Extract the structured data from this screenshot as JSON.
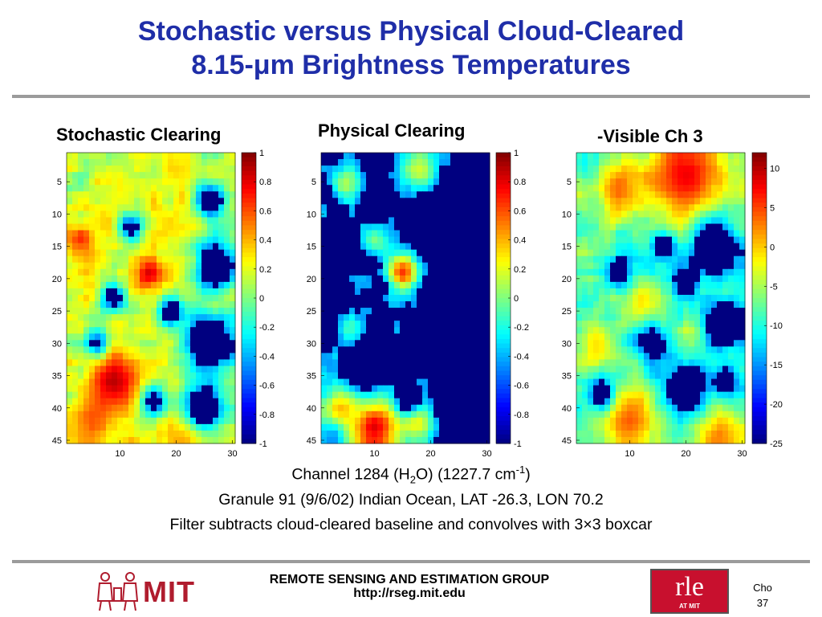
{
  "slide": {
    "title_line1": "Stochastic versus Physical Cloud-Cleared",
    "title_line2": "8.15-μm Brightness Temperatures"
  },
  "captions": {
    "line1_part1": "Channel 1284 (H",
    "line1_sub": "2",
    "line1_part2": "O) (1227.7 cm",
    "line1_sup": "-1",
    "line1_part3": ")",
    "line2": "Granule 91 (9/6/02) Indian Ocean, LAT -26.3, LON 70.2",
    "line3": "Filter subtracts cloud-cleared baseline and convolves with 3×3 boxcar"
  },
  "footer": {
    "group_name": "REMOTE SENSING AND ESTIMATION GROUP",
    "url": "http://rseg.mit.edu",
    "mit_logo_text": "MIT",
    "rle_logo_text": "rle",
    "rle_logo_sub": "AT MIT",
    "author": "Cho",
    "page": "37"
  },
  "colors": {
    "title": "#1f2ea8",
    "rule": "#9b9b9b"
  },
  "chart_data": [
    {
      "type": "heatmap",
      "title": "Stochastic Clearing",
      "xticks": [
        10,
        20,
        30
      ],
      "yticks": [
        5,
        10,
        15,
        20,
        25,
        30,
        35,
        40,
        45
      ],
      "xlim": [
        1,
        30
      ],
      "ylim": [
        1,
        45
      ],
      "colorbar": {
        "min": -1,
        "max": 1,
        "ticks": [
          1,
          0.8,
          0.6,
          0.4,
          0.2,
          0,
          -0.2,
          -0.4,
          -0.6,
          -0.8,
          -1
        ],
        "labels": [
          "1",
          "0.8",
          "0.6",
          "0.4",
          "0.2",
          "0",
          "-0.2",
          "-0.4",
          "-0.6",
          "-0.8",
          "-1"
        ]
      },
      "colormap": "jet",
      "seed": 11,
      "features": [
        {
          "x": 3,
          "y": 14,
          "r": 2.0,
          "v": 0.85
        },
        {
          "x": 15,
          "y": 19,
          "r": 2.4,
          "v": 0.95
        },
        {
          "x": 9,
          "y": 36,
          "r": 4.5,
          "v": 0.95
        },
        {
          "x": 5,
          "y": 42,
          "r": 4,
          "v": 0.6
        },
        {
          "x": 22,
          "y": 44,
          "r": 4,
          "v": 0.55
        },
        {
          "x": 18,
          "y": 12,
          "r": 3,
          "v": 0.35
        },
        {
          "x": 10,
          "y": 7,
          "r": 3,
          "v": 0.25
        },
        {
          "x": 20,
          "y": 3,
          "r": 3,
          "v": 0.35
        },
        {
          "x": 26,
          "y": 8,
          "r": 2.5,
          "v": -1
        },
        {
          "x": 27,
          "y": 18,
          "r": 3.5,
          "v": -1
        },
        {
          "x": 26,
          "y": 30,
          "r": 4.5,
          "v": -1
        },
        {
          "x": 25,
          "y": 40,
          "r": 3.5,
          "v": -1
        },
        {
          "x": 16,
          "y": 39,
          "r": 2.0,
          "v": -1
        },
        {
          "x": 9,
          "y": 23,
          "r": 2.0,
          "v": -1
        },
        {
          "x": 19,
          "y": 25,
          "r": 2.0,
          "v": -1
        },
        {
          "x": 12,
          "y": 12,
          "r": 1.8,
          "v": -1
        },
        {
          "x": 6,
          "y": 30,
          "r": 1.8,
          "v": -1
        }
      ],
      "base": 0.15
    },
    {
      "type": "heatmap",
      "title": "Physical Clearing",
      "xticks": [
        10,
        20,
        30
      ],
      "yticks": [
        5,
        10,
        15,
        20,
        25,
        30,
        35,
        40,
        45
      ],
      "xlim": [
        1,
        30
      ],
      "ylim": [
        1,
        45
      ],
      "colorbar": {
        "min": -1,
        "max": 1,
        "ticks": [
          1,
          0.8,
          0.6,
          0.4,
          0.2,
          0,
          -0.2,
          -0.4,
          -0.6,
          -0.8,
          -1
        ],
        "labels": [
          "1",
          "0.8",
          "0.6",
          "0.4",
          "0.2",
          "0",
          "-0.2",
          "-0.4",
          "-0.6",
          "-0.8",
          "-1"
        ]
      },
      "colormap": "jet",
      "seed": 23,
      "features": [
        {
          "x": 15,
          "y": 19,
          "r": 2.4,
          "v": 0.95
        },
        {
          "x": 10,
          "y": 43,
          "r": 4.5,
          "v": 0.9
        },
        {
          "x": 4,
          "y": 40,
          "r": 3,
          "v": 0.5
        },
        {
          "x": 18,
          "y": 42,
          "r": 3,
          "v": 0.45
        },
        {
          "x": 18,
          "y": 3,
          "r": 3,
          "v": 0.3
        },
        {
          "x": 5,
          "y": 5,
          "r": 2.5,
          "v": 0.2
        },
        {
          "x": 10,
          "y": 14,
          "r": 2.2,
          "v": 0.15
        },
        {
          "x": 6,
          "y": 28,
          "r": 2.5,
          "v": 0.05
        },
        {
          "x": 25,
          "y": 12,
          "r": 5,
          "v": -1
        },
        {
          "x": 26,
          "y": 28,
          "r": 5,
          "v": -1
        },
        {
          "x": 25,
          "y": 40,
          "r": 4,
          "v": -1
        },
        {
          "x": 10,
          "y": 8,
          "r": 2.2,
          "v": -1
        },
        {
          "x": 4,
          "y": 17,
          "r": 2.5,
          "v": -1
        },
        {
          "x": 9,
          "y": 33,
          "r": 3.5,
          "v": -1
        },
        {
          "x": 16,
          "y": 39,
          "r": 1.8,
          "v": -1
        },
        {
          "x": 18,
          "y": 11,
          "r": 2,
          "v": -1
        }
      ],
      "base": -0.55
    },
    {
      "type": "heatmap",
      "title": "-Visible Ch 3",
      "xticks": [
        10,
        20,
        30
      ],
      "yticks": [
        5,
        10,
        15,
        20,
        25,
        30,
        35,
        40,
        45
      ],
      "xlim": [
        1,
        30
      ],
      "ylim": [
        1,
        45
      ],
      "colorbar": {
        "min": -25,
        "max": 12,
        "ticks": [
          10,
          5,
          0,
          -5,
          -10,
          -15,
          -20,
          -25
        ],
        "labels": [
          "10",
          "5",
          "0",
          "-5",
          "-10",
          "-15",
          "-20",
          "-25"
        ]
      },
      "colormap": "jet",
      "seed": 37,
      "features": [
        {
          "x": 20,
          "y": 4,
          "r": 7,
          "v": 0.8
        },
        {
          "x": 8,
          "y": 6,
          "r": 4,
          "v": 0.6
        },
        {
          "x": 10,
          "y": 42,
          "r": 5,
          "v": 0.6
        },
        {
          "x": 26,
          "y": 44,
          "r": 3.5,
          "v": 0.55
        },
        {
          "x": 4,
          "y": 30,
          "r": 3,
          "v": 0.35
        },
        {
          "x": 12,
          "y": 24,
          "r": 3,
          "v": 0.35
        },
        {
          "x": 8,
          "y": 19,
          "r": 2,
          "v": -1
        },
        {
          "x": 16,
          "y": 15,
          "r": 2,
          "v": -1
        },
        {
          "x": 20,
          "y": 21,
          "r": 2.2,
          "v": -1
        },
        {
          "x": 14,
          "y": 30,
          "r": 2.5,
          "v": -1
        },
        {
          "x": 25,
          "y": 15,
          "r": 4,
          "v": -1
        },
        {
          "x": 27,
          "y": 27,
          "r": 3.5,
          "v": -1
        },
        {
          "x": 20,
          "y": 37,
          "r": 3.5,
          "v": -1
        },
        {
          "x": 5,
          "y": 38,
          "r": 2,
          "v": -1
        },
        {
          "x": 27,
          "y": 36,
          "r": 2,
          "v": -1
        }
      ],
      "base": -0.1
    }
  ]
}
